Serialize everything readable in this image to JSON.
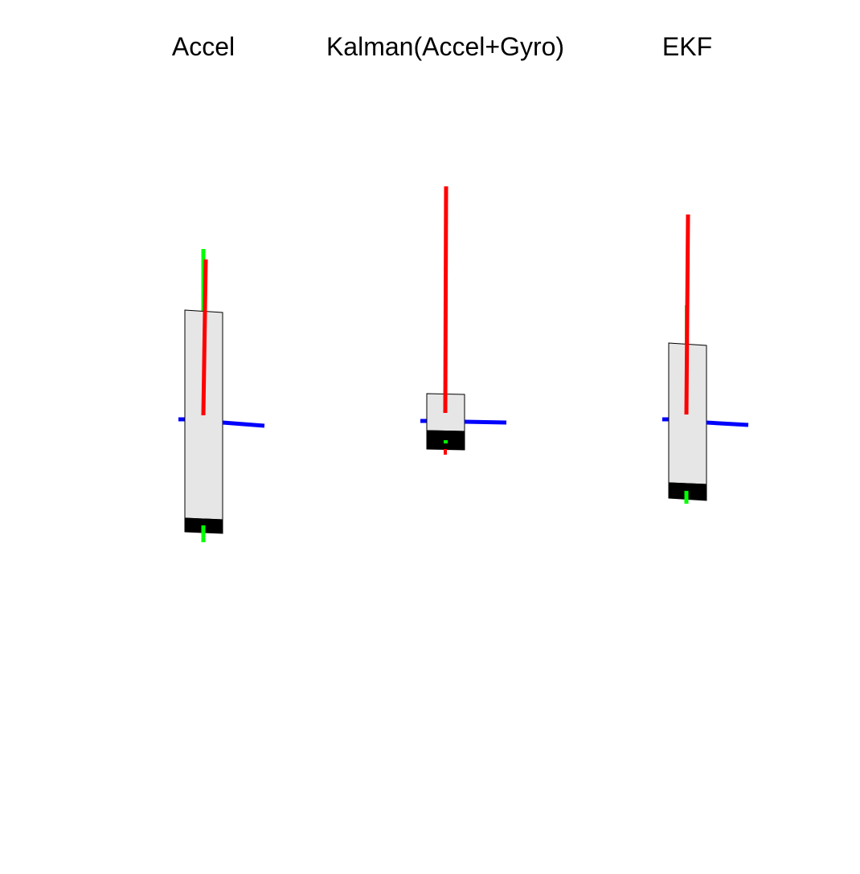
{
  "panels": [
    {
      "key": "accel",
      "title": "Accel"
    },
    {
      "key": "kalman",
      "title": "Kalman(Accel+Gyro)"
    },
    {
      "key": "ekf",
      "title": "EKF"
    }
  ],
  "colors": {
    "background": "#ffffff",
    "box_face": "#e6e6e6",
    "box_edge": "#000000",
    "box_end_face": "#000000",
    "axis_x": "#ff0000",
    "axis_y": "#00ff00",
    "axis_z": "#0000ff"
  },
  "icons": [
    "3d-box-orientation",
    "orientation-axes-xyz"
  ]
}
